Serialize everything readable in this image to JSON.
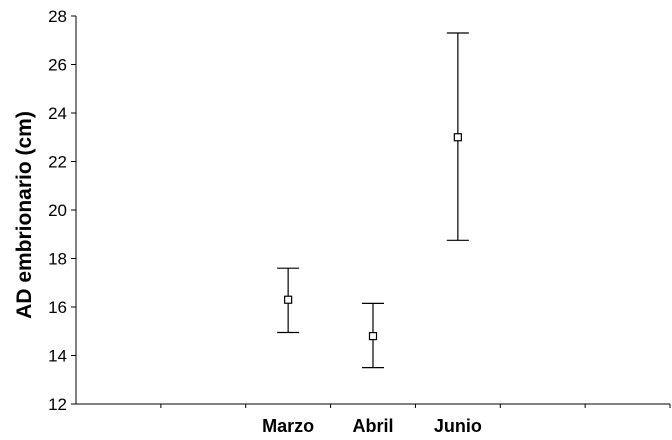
{
  "chart_data": {
    "type": "scatter",
    "title": "",
    "xlabel": "",
    "ylabel": "AD embrionario (cm)",
    "ylim": [
      12,
      28
    ],
    "yticks": [
      12,
      14,
      16,
      18,
      20,
      22,
      24,
      26,
      28
    ],
    "categories": [
      "Marzo",
      "Abril",
      "Junio"
    ],
    "series": [
      {
        "values": [
          16.3,
          14.8,
          23.0
        ],
        "lower": [
          14.95,
          13.5,
          18.75
        ],
        "upper": [
          17.6,
          16.15,
          27.3
        ]
      }
    ],
    "grid": false,
    "legend": "none"
  }
}
